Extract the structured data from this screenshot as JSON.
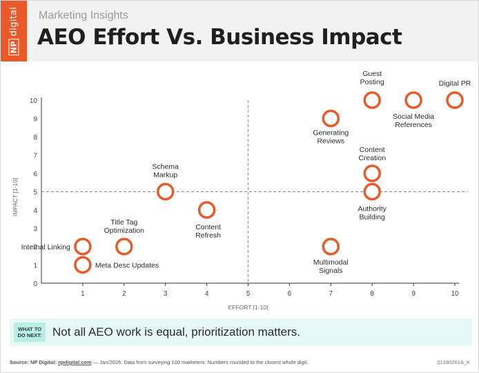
{
  "header": {
    "logo_np": "NP",
    "logo_word": "digital",
    "subtitle": "Marketing Insights",
    "title": "AEO Effort Vs. Business Impact"
  },
  "chart_data": {
    "type": "scatter",
    "xlabel": "EFFORT [1-10]",
    "ylabel": "IMPACT [1-10]",
    "xlim": [
      0,
      10
    ],
    "ylim": [
      0,
      10
    ],
    "x_ticks": [
      "1",
      "2",
      "3",
      "4",
      "5",
      "6",
      "7",
      "8",
      "9",
      "10"
    ],
    "y_ticks": [
      "0",
      "1",
      "2",
      "3",
      "4",
      "5",
      "6",
      "7",
      "8",
      "9",
      "10"
    ],
    "quadrant_lines": {
      "x": 5,
      "y": 5
    },
    "grid": false,
    "marker_color": "#e85a2a",
    "points": [
      {
        "label": "Internal Linking",
        "x": 1,
        "y": 2
      },
      {
        "label": "Meta Desc Updates",
        "x": 1,
        "y": 1
      },
      {
        "label": "Title Tag Optimization",
        "x": 2,
        "y": 2
      },
      {
        "label": "Schema Markup",
        "x": 3,
        "y": 5
      },
      {
        "label": "Content Refresh",
        "x": 4,
        "y": 4
      },
      {
        "label": "Multimodal Signals",
        "x": 7,
        "y": 2
      },
      {
        "label": "Generating Reviews",
        "x": 7,
        "y": 9
      },
      {
        "label": "Guest Posting",
        "x": 8,
        "y": 10
      },
      {
        "label": "Content Creation",
        "x": 8,
        "y": 6
      },
      {
        "label": "Authority Building",
        "x": 8,
        "y": 5
      },
      {
        "label": "Social Media References",
        "x": 9,
        "y": 10
      },
      {
        "label": "Digital PR",
        "x": 10,
        "y": 10
      }
    ]
  },
  "callout": {
    "badge": "WHAT TO\nDO NEXT:",
    "text": "Not all AEO work is equal, prioritization matters."
  },
  "footer": {
    "source_label": "Source: NP Digital:",
    "source_link": "npdigital.com",
    "source_rest": " — Jan/2026. Data from surveying 100 marketers. Numbers rounded to the closest whole digit.",
    "code": "01280261A_K"
  },
  "colors": {
    "accent": "#e85a2a",
    "callout_bg": "#e6f9f6",
    "badge_bg": "#b9efe6"
  }
}
